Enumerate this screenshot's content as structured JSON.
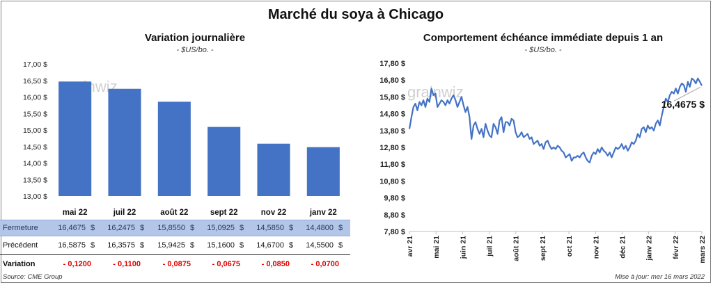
{
  "title": "Marché du soya à Chicago",
  "left_chart": {
    "title": "Variation journalière",
    "unit": "- $US/bo. -",
    "watermark": "grainwiz"
  },
  "right_chart": {
    "title": "Comportement échéance immédiate depuis 1 an",
    "unit": "- $US/bo. -",
    "watermark": "grainwiz",
    "last_label": "16,4675 $"
  },
  "table": {
    "rows": [
      {
        "label": "Fermeture",
        "values": [
          "16,4675",
          "16,2475",
          "15,8550",
          "15,0925",
          "14,5850",
          "14,4800"
        ],
        "currency": "$"
      },
      {
        "label": "Précédent",
        "values": [
          "16,5875",
          "16,3575",
          "15,9425",
          "15,1600",
          "14,6700",
          "14,5500"
        ],
        "currency": "$"
      },
      {
        "label": "Variation",
        "values": [
          "- 0,1200",
          "- 0,1100",
          "- 0,0875",
          "- 0,0675",
          "- 0,0850",
          "- 0,0700"
        ],
        "currency": ""
      }
    ]
  },
  "footer": {
    "source": "Source: CME Group",
    "update": "Mise à jour: mer 16 mars 2022"
  },
  "chart_data": [
    {
      "type": "bar",
      "title": "Variation journalière",
      "categories": [
        "mai 22",
        "juil 22",
        "août 22",
        "sept 22",
        "nov 22",
        "janv 22"
      ],
      "values": [
        16.4675,
        16.2475,
        15.855,
        15.0925,
        14.585,
        14.48
      ],
      "ylim": [
        13.0,
        17.0
      ],
      "yticks": [
        13.0,
        13.5,
        14.0,
        14.5,
        15.0,
        15.5,
        16.0,
        16.5,
        17.0
      ],
      "ytick_labels": [
        "13,00 $",
        "13,50 $",
        "14,00 $",
        "14,50 $",
        "15,00 $",
        "15,50 $",
        "16,00 $",
        "16,50 $",
        "17,00 $"
      ],
      "color": "#4472c4"
    },
    {
      "type": "line",
      "title": "Comportement échéance immédiate depuis 1 an",
      "ylim": [
        7.8,
        17.8
      ],
      "yticks": [
        7.8,
        8.8,
        9.8,
        10.8,
        11.8,
        12.8,
        13.8,
        14.8,
        15.8,
        16.8,
        17.8
      ],
      "ytick_labels": [
        "7,80 $",
        "8,80 $",
        "9,80 $",
        "10,80 $",
        "11,80 $",
        "12,80 $",
        "13,80 $",
        "14,80 $",
        "15,80 $",
        "16,80 $",
        "17,80 $"
      ],
      "x_labels": [
        "avr 21",
        "mai 21",
        "juin 21",
        "juil 21",
        "août 21",
        "sept 21",
        "oct 21",
        "nov 21",
        "déc 21",
        "janv 22",
        "févr 22",
        "mars 22"
      ],
      "color": "#4472c4",
      "series": [
        {
          "values": [
            13.9,
            14.6,
            15.2,
            15.4,
            15.0,
            15.5,
            15.3,
            15.6,
            15.2,
            15.7,
            15.5,
            16.3,
            15.9,
            16.0,
            15.2,
            15.4,
            15.6,
            15.5,
            15.3,
            15.6,
            15.4,
            15.7,
            15.9,
            15.6,
            15.2,
            15.5,
            15.8,
            15.3,
            14.9,
            15.2,
            14.6,
            13.3,
            14.1,
            14.3,
            13.9,
            13.6,
            13.9,
            13.4,
            14.2,
            13.8,
            13.5,
            13.4,
            14.2,
            14.0,
            13.6,
            14.4,
            14.6,
            13.7,
            14.3,
            14.3,
            14.1,
            14.5,
            14.4,
            13.7,
            13.4,
            13.5,
            13.7,
            13.4,
            13.5,
            13.6,
            13.3,
            13.4,
            13.0,
            13.1,
            13.2,
            12.9,
            13.0,
            12.7,
            13.1,
            13.2,
            12.9,
            12.7,
            12.8,
            12.7,
            12.9,
            12.8,
            12.6,
            12.5,
            12.2,
            12.3,
            12.4,
            12.0,
            12.2,
            12.2,
            12.3,
            12.2,
            12.4,
            12.5,
            12.2,
            12.0,
            11.9,
            12.3,
            12.5,
            12.4,
            12.7,
            12.5,
            12.8,
            12.6,
            12.5,
            12.3,
            12.5,
            12.2,
            12.5,
            12.8,
            12.7,
            12.8,
            13.0,
            12.7,
            12.9,
            12.6,
            12.8,
            13.1,
            13.0,
            13.2,
            13.6,
            13.4,
            13.9,
            14.0,
            13.7,
            14.1,
            13.9,
            14.0,
            13.8,
            14.2,
            14.4,
            14.1,
            14.7,
            15.2,
            15.7,
            15.5,
            15.9,
            16.1,
            16.0,
            16.3,
            16.0,
            16.4,
            16.6,
            16.5,
            16.1,
            16.7,
            16.4,
            16.9,
            16.8,
            16.6,
            16.9,
            16.7,
            16.4675
          ]
        }
      ]
    }
  ]
}
